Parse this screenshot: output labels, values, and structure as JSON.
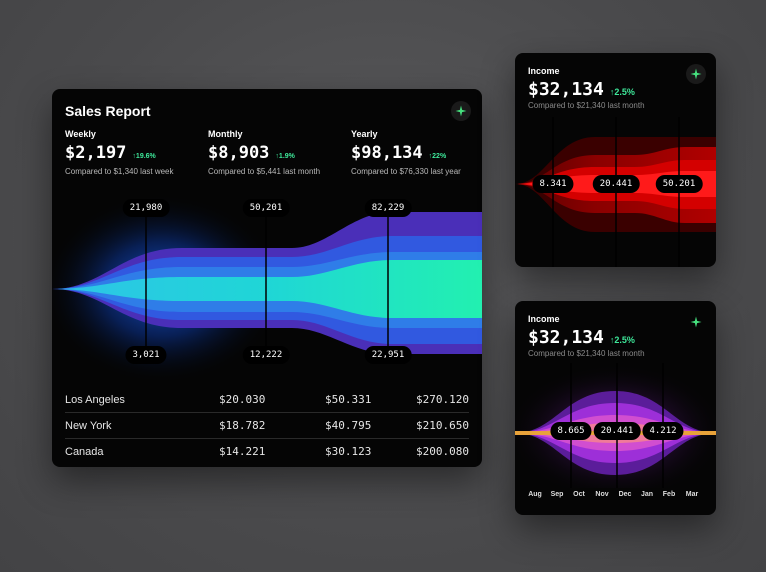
{
  "sales": {
    "title": "Sales Report",
    "metrics": [
      {
        "label": "Weekly",
        "value": "$2,197",
        "change": "↑19.6%",
        "compare": "Compared to $1,340 last week"
      },
      {
        "label": "Monthly",
        "value": "$8,903",
        "change": "↑1.9%",
        "compare": "Compared to $5,441 last month"
      },
      {
        "label": "Yearly",
        "value": "$98,134",
        "change": "↑22%",
        "compare": "Compared to $76,330 last year"
      }
    ],
    "markers": [
      {
        "top": "21,980",
        "bottom": "3,021"
      },
      {
        "top": "50,201",
        "bottom": "12,222"
      },
      {
        "top": "82,229",
        "bottom": "22,951"
      }
    ],
    "rows": [
      {
        "city": "Los Angeles",
        "a": "$20.030",
        "b": "$50.331",
        "c": "$270.120"
      },
      {
        "city": "New York",
        "a": "$18.782",
        "b": "$40.795",
        "c": "$210.650"
      },
      {
        "city": "Canada",
        "a": "$14.221",
        "b": "$30.123",
        "c": "$200.080"
      }
    ]
  },
  "income_red": {
    "label": "Income",
    "value": "$32,134",
    "change": "↑2.5%",
    "compare": "Compared to $21,340 last month",
    "markers": [
      "8.341",
      "20.441",
      "50.201"
    ]
  },
  "income_purple": {
    "label": "Income",
    "value": "$32,134",
    "change": "↑2.5%",
    "compare": "Compared to $21,340 last month",
    "markers": [
      "8.665",
      "20.441",
      "4.212"
    ],
    "months": [
      "Aug",
      "Sep",
      "Oct",
      "Nov",
      "Dec",
      "Jan",
      "Feb",
      "Mar"
    ]
  },
  "colors": {
    "accent_green": "#3ee89a",
    "sparkle": "#46e07e"
  }
}
